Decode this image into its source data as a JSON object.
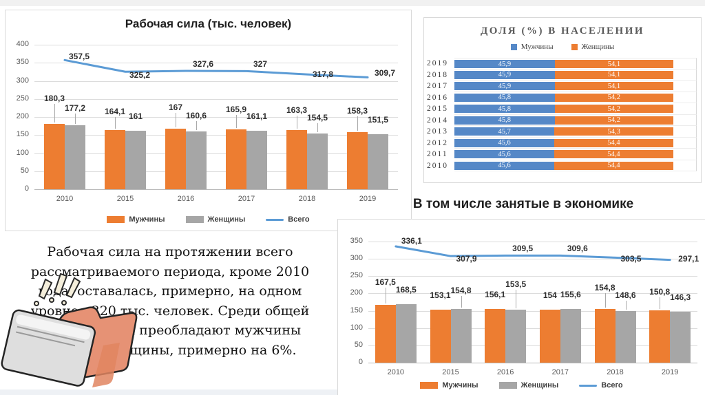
{
  "colors": {
    "orange": "#ED7D31",
    "gray_bar": "#A6A6A6",
    "line_blue": "#5B9BD5",
    "stacked_blue": "#5588C7"
  },
  "chart_data": [
    {
      "id": "labor_force",
      "type": "bar",
      "title": "Рабочая сила (тыс. человек)",
      "categories": [
        "2010",
        "2015",
        "2016",
        "2017",
        "2018",
        "2019"
      ],
      "series": [
        {
          "name": "Мужчины",
          "type": "bar",
          "color": "#ED7D31",
          "values": [
            180.3,
            164.1,
            167,
            165.9,
            163.3,
            158.3
          ],
          "labels": [
            "180,3",
            "164,1",
            "167",
            "165,9",
            "163,3",
            "158,3"
          ]
        },
        {
          "name": "Женщины",
          "type": "bar",
          "color": "#A6A6A6",
          "values": [
            177.2,
            161,
            160.6,
            161.1,
            154.5,
            151.5
          ],
          "labels": [
            "177,2",
            "161",
            "160,6",
            "161,1",
            "154,5",
            "151,5"
          ]
        },
        {
          "name": "Всего",
          "type": "line",
          "color": "#5B9BD5",
          "values": [
            357.5,
            325.2,
            327.6,
            327,
            317.8,
            309.7
          ],
          "labels": [
            "357,5",
            "325,2",
            "327,6",
            "327",
            "317,8",
            "309,7"
          ]
        }
      ],
      "ylim": [
        0,
        400
      ],
      "ytick_step": 50,
      "grid": true,
      "legend_position": "bottom"
    },
    {
      "id": "population_share",
      "type": "bar",
      "subtype": "stacked-horizontal",
      "title": "ДОЛЯ (%) В НАСЕЛЕНИИ",
      "categories": [
        "2019",
        "2018",
        "2017",
        "2016",
        "2015",
        "2014",
        "2013",
        "2012",
        "2011",
        "2010"
      ],
      "series": [
        {
          "name": "Мужчины",
          "type": "bar",
          "color": "#5588C7",
          "values": [
            45.9,
            45.9,
            45.9,
            45.8,
            45.8,
            45.8,
            45.7,
            45.6,
            45.6,
            45.6
          ],
          "labels": [
            "45,9",
            "45,9",
            "45,9",
            "45,8",
            "45,8",
            "45,8",
            "45,7",
            "45,6",
            "45,6",
            "45,6"
          ]
        },
        {
          "name": "Женщины",
          "type": "bar",
          "color": "#ED7D31",
          "values": [
            54.1,
            54.1,
            54.1,
            54.2,
            54.2,
            54.2,
            54.3,
            54.4,
            54.4,
            54.4
          ],
          "labels": [
            "54,1",
            "54,1",
            "54,1",
            "54,2",
            "54,2",
            "54,2",
            "54,3",
            "54,4",
            "54,4",
            "54,4"
          ]
        }
      ],
      "xlim": [
        0,
        100
      ],
      "grid": true,
      "legend_position": "top"
    },
    {
      "id": "employed_in_economy",
      "type": "bar",
      "title": "В том числе занятые в экономике",
      "categories": [
        "2010",
        "2015",
        "2016",
        "2017",
        "2018",
        "2019"
      ],
      "series": [
        {
          "name": "Мужчины",
          "type": "bar",
          "color": "#ED7D31",
          "values": [
            167.5,
            153.1,
            156.1,
            154,
            154.8,
            150.8
          ],
          "labels": [
            "167,5",
            "153,1",
            "156,1",
            "154",
            "154,8",
            "150,8"
          ]
        },
        {
          "name": "Женщины",
          "type": "bar",
          "color": "#A6A6A6",
          "values": [
            168.5,
            154.8,
            153.5,
            155.6,
            148.6,
            146.3
          ],
          "labels": [
            "168,5",
            "154,8",
            "153,5",
            "155,6",
            "148,6",
            "146,3"
          ]
        },
        {
          "name": "Всего",
          "type": "line",
          "color": "#5B9BD5",
          "values": [
            336.1,
            307.9,
            309.5,
            309.6,
            303.5,
            297.1
          ],
          "labels": [
            "336,1",
            "307,9",
            "309,5",
            "309,6",
            "303,5",
            "297,1"
          ]
        }
      ],
      "ylim": [
        0,
        350
      ],
      "ytick_step": 50,
      "grid": true,
      "legend_position": "bottom"
    }
  ],
  "note": {
    "text": "Рабочая сила на протяжении всего рассматриваемого периода, кроме 2010 года, оставалась, примерно, на одном уровне - 320 тыс. человек. Среди общей рабочей силы преобладают мужчины нежели женщины, примерно на 6%."
  },
  "icons": {
    "clipart": "folder-clipart"
  }
}
